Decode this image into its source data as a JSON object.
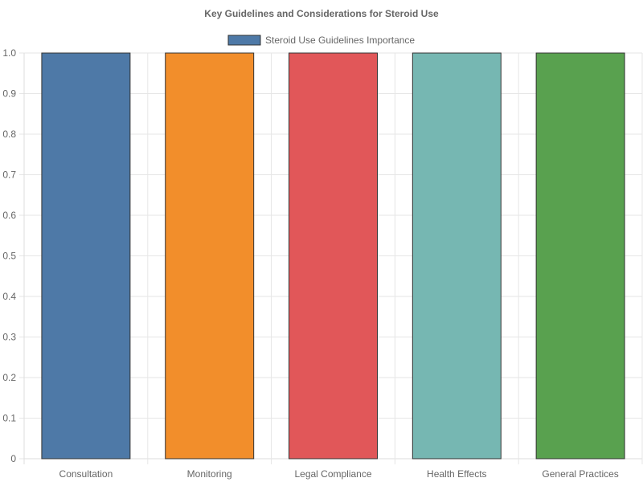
{
  "chart_data": {
    "type": "bar",
    "title": "Key Guidelines and Considerations for Steroid Use",
    "xlabel": "",
    "ylabel": "",
    "categories": [
      "Consultation",
      "Monitoring",
      "Legal Compliance",
      "Health Effects",
      "General Practices"
    ],
    "series": [
      {
        "name": "Steroid Use Guidelines Importance",
        "values": [
          1,
          1,
          1,
          1,
          1
        ],
        "colors": [
          "#4e79a7",
          "#f28e2b",
          "#e15759",
          "#76b7b2",
          "#59a14f"
        ],
        "legend_color": "#4e79a7"
      }
    ],
    "ylim": [
      0,
      1
    ],
    "yticks": [
      "0",
      "0.1",
      "0.2",
      "0.3",
      "0.4",
      "0.5",
      "0.6",
      "0.7",
      "0.8",
      "0.9",
      "1.0"
    ],
    "grid": true,
    "legend_position": "top"
  }
}
